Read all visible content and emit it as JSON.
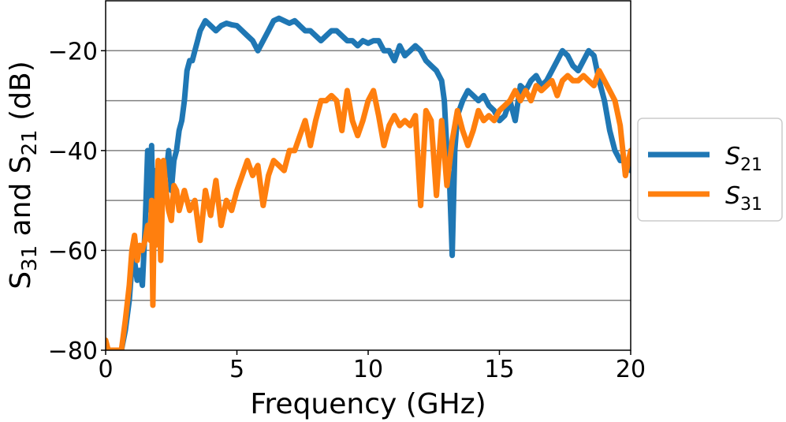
{
  "chart_data": {
    "type": "line",
    "xlabel": "Frequency (GHz)",
    "ylabel_main": "S",
    "ylabel_sub1": "31",
    "ylabel_mid": " and S",
    "ylabel_sub2": "21",
    "ylabel_tail": " (dB)",
    "xlim": [
      0,
      20
    ],
    "ylim": [
      -80,
      -10
    ],
    "xticks": [
      0,
      5,
      10,
      15,
      20
    ],
    "xtick_labels": [
      "0",
      "5",
      "10",
      "15",
      "20"
    ],
    "yticks": [
      -80,
      -60,
      -40,
      -20
    ],
    "ytick_labels": [
      "−80",
      "−60",
      "−40",
      "−20"
    ],
    "grid_y": [
      -70,
      -60,
      -50,
      -40,
      -30,
      -20
    ],
    "legend_position": "right-outside",
    "series": [
      {
        "name": "S21",
        "legend_main": "S",
        "legend_sub": "21",
        "color": "#1f77b4",
        "x": [
          0.6,
          0.75,
          0.9,
          1.0,
          1.1,
          1.2,
          1.3,
          1.4,
          1.5,
          1.6,
          1.7,
          1.75,
          1.8,
          1.85,
          1.9,
          2.0,
          2.1,
          2.2,
          2.3,
          2.4,
          2.5,
          2.6,
          2.7,
          2.8,
          2.9,
          3.0,
          3.1,
          3.2,
          3.3,
          3.4,
          3.5,
          3.6,
          3.7,
          3.8,
          4.0,
          4.2,
          4.4,
          4.6,
          4.8,
          5.0,
          5.2,
          5.4,
          5.6,
          5.8,
          6.0,
          6.2,
          6.4,
          6.6,
          6.8,
          7.0,
          7.2,
          7.4,
          7.6,
          7.8,
          8.0,
          8.2,
          8.4,
          8.6,
          8.8,
          9.0,
          9.2,
          9.4,
          9.6,
          9.8,
          10.0,
          10.2,
          10.4,
          10.6,
          10.8,
          11.0,
          11.2,
          11.4,
          11.6,
          11.8,
          12.0,
          12.2,
          12.4,
          12.6,
          12.8,
          12.9,
          13.0,
          13.1,
          13.2,
          13.3,
          13.4,
          13.6,
          13.8,
          14.0,
          14.2,
          14.4,
          14.6,
          14.8,
          15.0,
          15.2,
          15.4,
          15.6,
          15.8,
          16.0,
          16.2,
          16.4,
          16.6,
          16.8,
          17.0,
          17.2,
          17.4,
          17.6,
          17.8,
          18.0,
          18.2,
          18.4,
          18.6,
          18.8,
          19.0,
          19.2,
          19.4,
          19.6,
          19.8,
          20.0
        ],
        "y": [
          -80,
          -76,
          -70,
          -63,
          -62,
          -66,
          -64,
          -67,
          -56,
          -40,
          -52,
          -39,
          -53,
          -44,
          -58,
          -44,
          -50,
          -43,
          -45,
          -40,
          -48,
          -42,
          -40,
          -36,
          -34,
          -30,
          -24,
          -22,
          -22,
          -20,
          -18,
          -16,
          -15,
          -14,
          -15,
          -16,
          -15,
          -14.5,
          -14.8,
          -15,
          -16,
          -17,
          -18,
          -20,
          -18,
          -16,
          -14,
          -13.5,
          -14,
          -14.5,
          -14,
          -15,
          -16,
          -16,
          -17,
          -18,
          -17,
          -16,
          -16,
          -17,
          -18,
          -18,
          -19,
          -18,
          -18.5,
          -18,
          -18,
          -20,
          -20,
          -22,
          -19,
          -21,
          -20,
          -19,
          -20,
          -22,
          -23,
          -24,
          -26,
          -30,
          -40,
          -46,
          -61,
          -40,
          -33,
          -30,
          -28,
          -29,
          -30,
          -29,
          -31,
          -32,
          -34,
          -33,
          -30,
          -34,
          -27,
          -28,
          -26,
          -25,
          -27,
          -26,
          -24,
          -22,
          -20,
          -21,
          -23,
          -24,
          -22,
          -20,
          -21,
          -26,
          -30,
          -36,
          -40,
          -42,
          -42,
          -44
        ]
      },
      {
        "name": "S31",
        "legend_main": "S",
        "legend_sub": "31",
        "color": "#ff7f0e",
        "x": [
          0.0,
          0.1,
          0.2,
          0.3,
          0.4,
          0.5,
          0.6,
          0.75,
          0.9,
          1.0,
          1.1,
          1.2,
          1.3,
          1.4,
          1.5,
          1.6,
          1.7,
          1.75,
          1.8,
          1.85,
          1.9,
          2.0,
          2.1,
          2.2,
          2.3,
          2.4,
          2.5,
          2.6,
          2.7,
          2.8,
          3.0,
          3.2,
          3.4,
          3.6,
          3.8,
          4.0,
          4.2,
          4.4,
          4.6,
          4.8,
          5.0,
          5.2,
          5.4,
          5.6,
          5.8,
          6.0,
          6.2,
          6.4,
          6.6,
          6.8,
          7.0,
          7.2,
          7.4,
          7.6,
          7.8,
          8.0,
          8.2,
          8.4,
          8.6,
          8.8,
          9.0,
          9.2,
          9.4,
          9.6,
          9.8,
          10.0,
          10.2,
          10.4,
          10.6,
          10.8,
          11.0,
          11.2,
          11.4,
          11.6,
          11.8,
          12.0,
          12.2,
          12.4,
          12.6,
          12.8,
          13.0,
          13.2,
          13.4,
          13.6,
          13.8,
          14.0,
          14.2,
          14.4,
          14.6,
          14.8,
          15.0,
          15.2,
          15.4,
          15.6,
          15.8,
          16.0,
          16.2,
          16.4,
          16.6,
          16.8,
          17.0,
          17.2,
          17.4,
          17.6,
          17.8,
          18.0,
          18.2,
          18.4,
          18.6,
          18.8,
          19.0,
          19.2,
          19.4,
          19.6,
          19.8,
          20.0
        ],
        "y": [
          -78,
          -80,
          -80,
          -80,
          -80,
          -80,
          -80,
          -74,
          -67,
          -60,
          -57,
          -62,
          -59,
          -60,
          -58,
          -55,
          -58,
          -50,
          -71,
          -53,
          -59,
          -42,
          -62,
          -42,
          -48,
          -52,
          -54,
          -47,
          -48,
          -52,
          -48,
          -52,
          -50,
          -58,
          -48,
          -53,
          -46,
          -55,
          -50,
          -52,
          -48,
          -45,
          -42,
          -45,
          -43,
          -51,
          -45,
          -42,
          -43,
          -44,
          -40,
          -40,
          -37,
          -34,
          -39,
          -34,
          -30,
          -30,
          -29,
          -30,
          -36,
          -28,
          -34,
          -37,
          -34,
          -30,
          -28,
          -33,
          -39,
          -35,
          -33,
          -35,
          -34,
          -35,
          -33,
          -51,
          -32,
          -34,
          -49,
          -34,
          -47,
          -38,
          -32,
          -36,
          -39,
          -36,
          -32,
          -34,
          -33,
          -34,
          -32,
          -31,
          -30,
          -28,
          -30,
          -28,
          -30,
          -27,
          -28,
          -27,
          -26,
          -29,
          -26,
          -25,
          -26,
          -26,
          -25,
          -26,
          -27,
          -24,
          -26,
          -28,
          -30,
          -35,
          -45,
          -40
        ]
      }
    ]
  }
}
